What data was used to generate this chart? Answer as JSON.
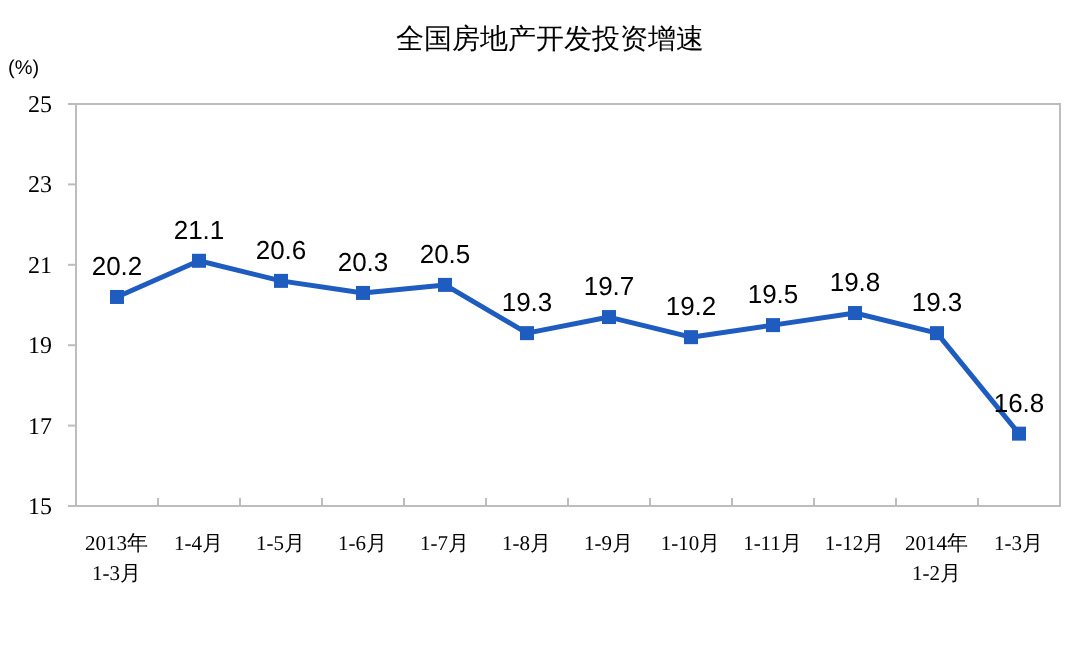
{
  "chart_data": {
    "type": "line",
    "title": "全国房地产开发投资增速",
    "ylabel": "(%)",
    "categories": [
      "2013年\n1-3月",
      "1-4月",
      "1-5月",
      "1-6月",
      "1-7月",
      "1-8月",
      "1-9月",
      "1-10月",
      "1-11月",
      "1-12月",
      "2014年\n1-2月",
      "1-3月"
    ],
    "series": [
      {
        "color": "#1f5cc0",
        "values": [
          20.2,
          21.1,
          20.6,
          20.3,
          20.5,
          19.3,
          19.7,
          19.2,
          19.5,
          19.8,
          19.3,
          16.8
        ]
      }
    ],
    "ylim": [
      15,
      25
    ],
    "yticks": [
      15,
      17,
      19,
      21,
      23,
      25
    ],
    "marker": "square",
    "line_style": "solid",
    "data_labels": true,
    "grid": false
  }
}
